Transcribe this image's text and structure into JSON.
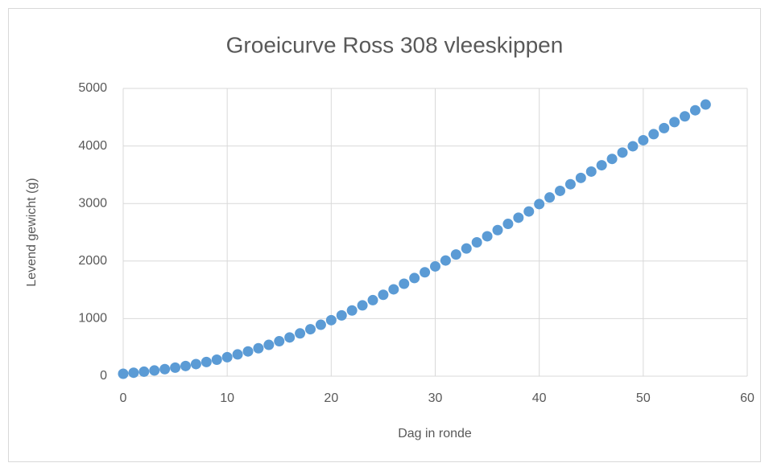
{
  "chart_data": {
    "type": "scatter",
    "title": "Groeicurve Ross 308 vleeskippen",
    "x_label": "Dag in ronde",
    "y_label": "Levend gewicht (g)",
    "series": [
      {
        "color": "#5b9bd5",
        "x": [
          0,
          1,
          2,
          3,
          4,
          5,
          6,
          7,
          8,
          9,
          10,
          11,
          12,
          13,
          14,
          15,
          16,
          17,
          18,
          19,
          20,
          21,
          22,
          23,
          24,
          25,
          26,
          27,
          28,
          29,
          30,
          31,
          32,
          33,
          34,
          35,
          36,
          37,
          38,
          39,
          40,
          41,
          42,
          43,
          44,
          45,
          46,
          47,
          48,
          49,
          50,
          51,
          52,
          53,
          54,
          55,
          56
        ],
        "values": [
          42,
          60,
          78,
          99,
          122,
          148,
          177,
          210,
          246,
          286,
          330,
          378,
          430,
          485,
          544,
          607,
          673,
          743,
          816,
          893,
          973,
          1056,
          1142,
          1230,
          1321,
          1414,
          1509,
          1606,
          1705,
          1805,
          1907,
          2010,
          2114,
          2219,
          2325,
          2431,
          2538,
          2646,
          2754,
          2862,
          2990,
          3105,
          3220,
          3335,
          3445,
          3555,
          3665,
          3775,
          3885,
          3995,
          4100,
          4205,
          4310,
          4415,
          4515,
          4620,
          4720
        ]
      }
    ],
    "xlim": [
      0,
      60
    ],
    "xticks": [
      0,
      10,
      20,
      30,
      40,
      50,
      60
    ],
    "ylim": [
      0,
      5000
    ],
    "yticks": [
      0,
      1000,
      2000,
      3000,
      4000,
      5000
    ],
    "grid": true
  }
}
